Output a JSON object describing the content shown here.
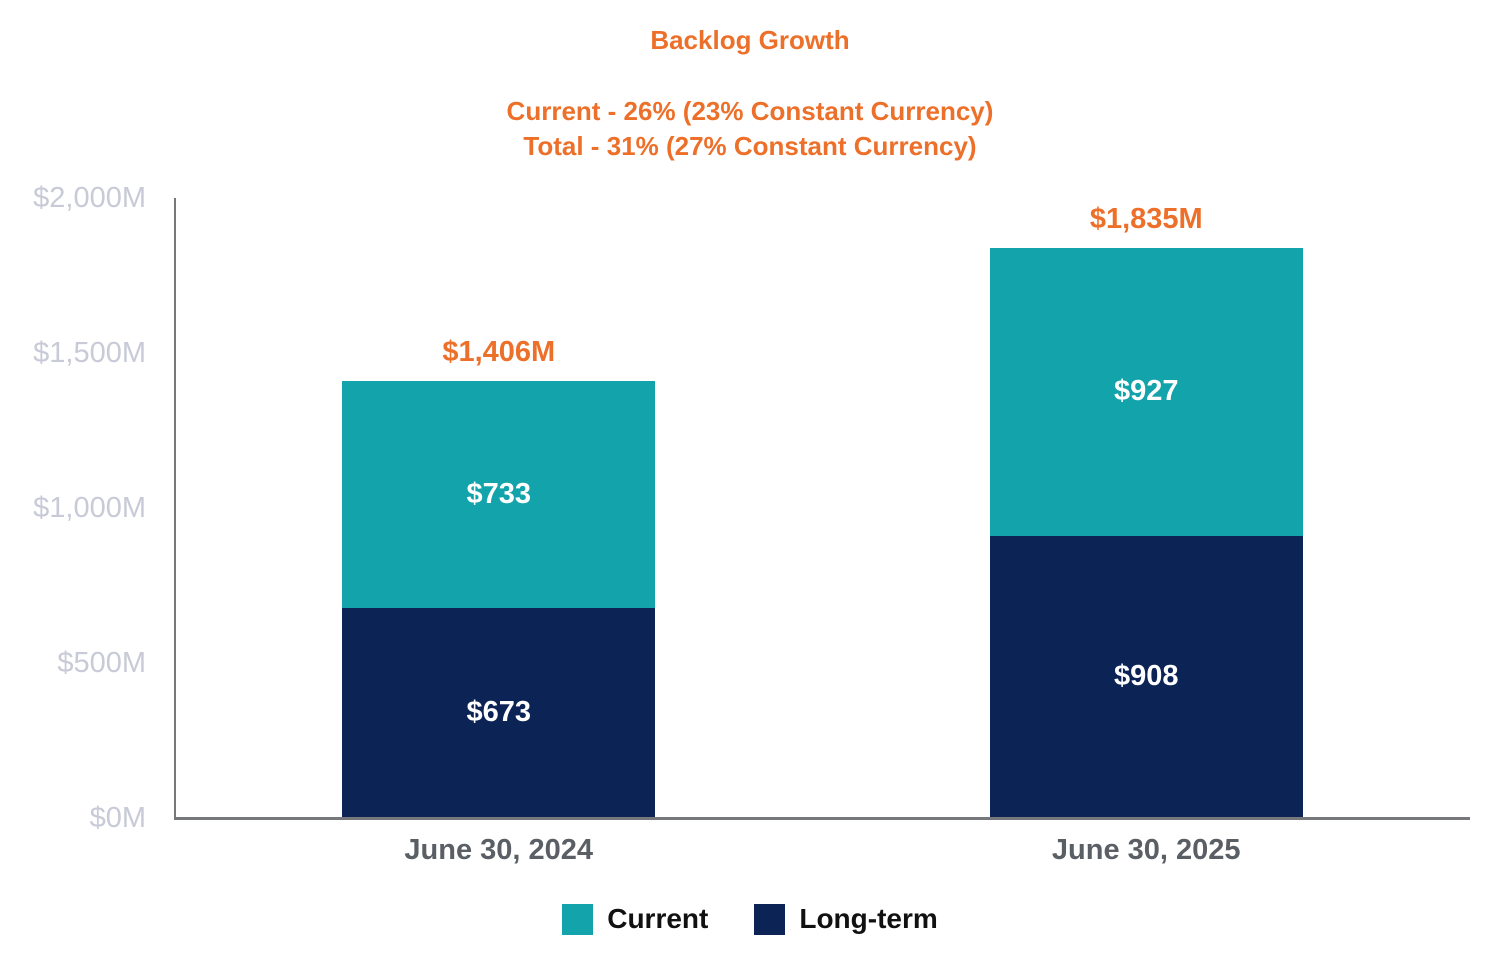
{
  "header": {
    "title": "Backlog Growth",
    "subtitle_line1": "Current - 26% (23% Constant Currency)",
    "subtitle_line2": "Total - 31% (27% Constant Currency)"
  },
  "chart_data": {
    "type": "bar",
    "stacked": true,
    "title": "Backlog Growth",
    "subtitle": [
      "Current - 26% (23% Constant Currency)",
      "Total - 31% (27% Constant Currency)"
    ],
    "categories": [
      "June 30, 2024",
      "June 30, 2025"
    ],
    "series": [
      {
        "name": "Long-term",
        "values": [
          673,
          908
        ],
        "color": "#0C2355"
      },
      {
        "name": "Current",
        "values": [
          733,
          927
        ],
        "color": "#12A3AB"
      }
    ],
    "segment_labels": [
      [
        "$673",
        "$733"
      ],
      [
        "$908",
        "$927"
      ]
    ],
    "totals": [
      1406,
      1835
    ],
    "total_labels": [
      "$1,406M",
      "$1,835M"
    ],
    "xlabel": "",
    "ylabel": "",
    "ylim": [
      0,
      2000
    ],
    "yticks": [
      0,
      500,
      1000,
      1500,
      2000
    ],
    "ytick_labels": [
      "$0M",
      "$500M",
      "$1,000M",
      "$1,500M",
      "$2,000M"
    ],
    "grid": false,
    "legend_position": "bottom",
    "legend": [
      {
        "label": "Current",
        "color": "#12A3AB"
      },
      {
        "label": "Long-term",
        "color": "#0C2355"
      }
    ]
  },
  "colors": {
    "accent_orange": "#ED702A",
    "teal": "#12A3AB",
    "navy": "#0C2355",
    "axis_line": "#77787B",
    "ytick_text": "#C8CBD7",
    "xtick_text": "#5A5F66",
    "legend_text": "#111111",
    "background": "#FFFFFF"
  }
}
